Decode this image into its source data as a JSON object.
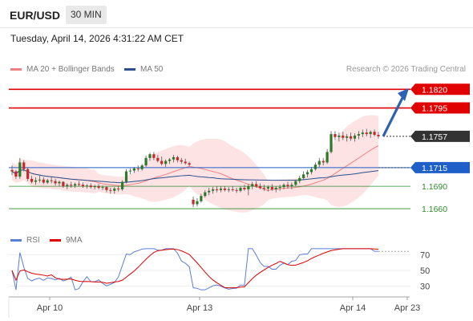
{
  "header": {
    "symbol": "EUR/USD",
    "interval": "30 MIN",
    "datetime": "Tuesday, April 14, 2026 4:31:22 AM CET",
    "research": "Research © 2026 Trading Central"
  },
  "legend": {
    "main": [
      {
        "label": "MA 20 + Bollinger Bands",
        "color": "#f08080"
      },
      {
        "label": "MA 50",
        "color": "#2d4f8e"
      }
    ],
    "rsi": [
      {
        "label": "RSI",
        "color": "#5b7fd6"
      },
      {
        "label": "9MA",
        "color": "#e00000"
      }
    ]
  },
  "chart_data": [
    {
      "type": "candlestick",
      "title": "EUR/USD 30 MIN",
      "ylim": [
        1.1645,
        1.183
      ],
      "x_ticks": [
        "Apr 10",
        "Apr 13",
        "Apr 14",
        "Apr 23"
      ],
      "levels": [
        {
          "value": 1.182,
          "label": "1.1820",
          "color": "#e00000",
          "kind": "resistance"
        },
        {
          "value": 1.1795,
          "label": "1.1795",
          "color": "#e00000",
          "kind": "resistance"
        },
        {
          "value": 1.1757,
          "label": "1.1757",
          "color": "#333333",
          "kind": "last-price"
        },
        {
          "value": 1.1715,
          "label": "1.1715",
          "color": "#1f5fc8",
          "kind": "pivot"
        },
        {
          "value": 1.169,
          "label": "1.1690",
          "color": "#2e8b2e",
          "kind": "support"
        },
        {
          "value": 1.166,
          "label": "1.1660",
          "color": "#2e8b2e",
          "kind": "support"
        }
      ],
      "candles": [
        [
          1.1712,
          1.1718,
          1.1705,
          1.171
        ],
        [
          1.171,
          1.1712,
          1.17,
          1.1703
        ],
        [
          1.1703,
          1.1728,
          1.17,
          1.1722
        ],
        [
          1.1722,
          1.1725,
          1.171,
          1.1713
        ],
        [
          1.1713,
          1.1715,
          1.1697,
          1.17
        ],
        [
          1.17,
          1.1704,
          1.1694,
          1.1696
        ],
        [
          1.1696,
          1.1702,
          1.1692,
          1.1698
        ],
        [
          1.1698,
          1.1704,
          1.1695,
          1.1699
        ],
        [
          1.1699,
          1.1702,
          1.1693,
          1.1695
        ],
        [
          1.1695,
          1.17,
          1.1693,
          1.1698
        ],
        [
          1.1698,
          1.1702,
          1.1694,
          1.1697
        ],
        [
          1.1697,
          1.17,
          1.1691,
          1.1694
        ],
        [
          1.1694,
          1.1698,
          1.169,
          1.1696
        ],
        [
          1.1696,
          1.1697,
          1.1688,
          1.169
        ],
        [
          1.169,
          1.1694,
          1.1686,
          1.1692
        ],
        [
          1.1692,
          1.1696,
          1.1688,
          1.1691
        ],
        [
          1.1691,
          1.1695,
          1.1688,
          1.1693
        ],
        [
          1.1693,
          1.1697,
          1.169,
          1.1692
        ],
        [
          1.1692,
          1.1695,
          1.1688,
          1.169
        ],
        [
          1.169,
          1.1693,
          1.1687,
          1.1691
        ],
        [
          1.1691,
          1.1694,
          1.1687,
          1.1689
        ],
        [
          1.1689,
          1.1692,
          1.1686,
          1.169
        ],
        [
          1.169,
          1.1693,
          1.1686,
          1.1688
        ],
        [
          1.1688,
          1.1691,
          1.1685,
          1.1689
        ],
        [
          1.1689,
          1.169,
          1.1682,
          1.1685
        ],
        [
          1.1685,
          1.1688,
          1.168,
          1.1684
        ],
        [
          1.1684,
          1.1689,
          1.168,
          1.1687
        ],
        [
          1.1687,
          1.169,
          1.1683,
          1.1686
        ],
        [
          1.1686,
          1.1698,
          1.1684,
          1.1696
        ],
        [
          1.1696,
          1.1713,
          1.1694,
          1.171
        ],
        [
          1.171,
          1.1714,
          1.1706,
          1.1711
        ],
        [
          1.1711,
          1.1716,
          1.1708,
          1.1714
        ],
        [
          1.1714,
          1.1718,
          1.171,
          1.1713
        ],
        [
          1.1713,
          1.172,
          1.1711,
          1.1718
        ],
        [
          1.1718,
          1.1731,
          1.1716,
          1.1728
        ],
        [
          1.1728,
          1.1735,
          1.1724,
          1.1733
        ],
        [
          1.1733,
          1.1736,
          1.1725,
          1.1728
        ],
        [
          1.1728,
          1.1732,
          1.1722,
          1.1724
        ],
        [
          1.1724,
          1.173,
          1.1718,
          1.172
        ],
        [
          1.172,
          1.1726,
          1.1716,
          1.1724
        ],
        [
          1.1724,
          1.1728,
          1.172,
          1.1726
        ],
        [
          1.1726,
          1.1732,
          1.1722,
          1.1729
        ],
        [
          1.1729,
          1.1731,
          1.1722,
          1.1725
        ],
        [
          1.1725,
          1.1728,
          1.172,
          1.1723
        ],
        [
          1.1723,
          1.1727,
          1.1719,
          1.1721
        ],
        [
          1.1721,
          1.1723,
          1.1717,
          1.1719
        ],
        [
          1.1672,
          1.1676,
          1.1662,
          1.1666
        ],
        [
          1.1666,
          1.1674,
          1.1663,
          1.167
        ],
        [
          1.167,
          1.168,
          1.1668,
          1.1677
        ],
        [
          1.1677,
          1.1685,
          1.1675,
          1.1682
        ],
        [
          1.1682,
          1.1688,
          1.1678,
          1.1684
        ],
        [
          1.1684,
          1.1689,
          1.168,
          1.1686
        ],
        [
          1.1686,
          1.169,
          1.1682,
          1.1685
        ],
        [
          1.1685,
          1.169,
          1.1682,
          1.1687
        ],
        [
          1.1687,
          1.169,
          1.1683,
          1.1685
        ],
        [
          1.1685,
          1.1689,
          1.1682,
          1.1686
        ],
        [
          1.1686,
          1.169,
          1.1683,
          1.1685
        ],
        [
          1.1685,
          1.1688,
          1.1681,
          1.1684
        ],
        [
          1.1684,
          1.169,
          1.1682,
          1.1688
        ],
        [
          1.1688,
          1.1692,
          1.1684,
          1.1686
        ],
        [
          1.1686,
          1.1693,
          1.1678,
          1.169
        ],
        [
          1.169,
          1.1696,
          1.1686,
          1.1693
        ],
        [
          1.1693,
          1.1697,
          1.1688,
          1.169
        ],
        [
          1.169,
          1.1694,
          1.1686,
          1.1688
        ],
        [
          1.1688,
          1.1692,
          1.1684,
          1.1687
        ],
        [
          1.1687,
          1.1691,
          1.1683,
          1.1689
        ],
        [
          1.1689,
          1.1693,
          1.1684,
          1.1686
        ],
        [
          1.1686,
          1.169,
          1.1682,
          1.1688
        ],
        [
          1.1688,
          1.1692,
          1.1684,
          1.1689
        ],
        [
          1.1689,
          1.1694,
          1.1686,
          1.1692
        ],
        [
          1.1692,
          1.1696,
          1.1687,
          1.169
        ],
        [
          1.169,
          1.1695,
          1.1686,
          1.1692
        ],
        [
          1.1692,
          1.1699,
          1.169,
          1.1697
        ],
        [
          1.1697,
          1.1704,
          1.1694,
          1.1701
        ],
        [
          1.1701,
          1.171,
          1.1699,
          1.1706
        ],
        [
          1.1706,
          1.1712,
          1.1702,
          1.1709
        ],
        [
          1.1709,
          1.1716,
          1.1706,
          1.1713
        ],
        [
          1.1713,
          1.1722,
          1.1711,
          1.1719
        ],
        [
          1.1719,
          1.1728,
          1.1716,
          1.1724
        ],
        [
          1.1724,
          1.1728,
          1.1718,
          1.1722
        ],
        [
          1.1722,
          1.174,
          1.172,
          1.1736
        ],
        [
          1.1736,
          1.1764,
          1.1734,
          1.176
        ],
        [
          1.176,
          1.1764,
          1.1752,
          1.1756
        ],
        [
          1.1756,
          1.1762,
          1.175,
          1.1758
        ],
        [
          1.1758,
          1.1763,
          1.1752,
          1.1755
        ],
        [
          1.1755,
          1.176,
          1.175,
          1.1757
        ],
        [
          1.1757,
          1.1762,
          1.1751,
          1.1754
        ],
        [
          1.1754,
          1.1761,
          1.175,
          1.1758
        ],
        [
          1.1758,
          1.1764,
          1.1753,
          1.176
        ],
        [
          1.176,
          1.1766,
          1.1756,
          1.1762
        ],
        [
          1.1762,
          1.1767,
          1.1757,
          1.176
        ],
        [
          1.176,
          1.1765,
          1.1755,
          1.1763
        ],
        [
          1.1763,
          1.1766,
          1.1757,
          1.1759
        ],
        [
          1.1759,
          1.1763,
          1.1754,
          1.1757
        ]
      ]
    },
    {
      "type": "line",
      "series_names": [
        "RSI",
        "9MA"
      ],
      "y_ticks": [
        70,
        50,
        30
      ],
      "ylim": [
        20,
        80
      ]
    }
  ]
}
